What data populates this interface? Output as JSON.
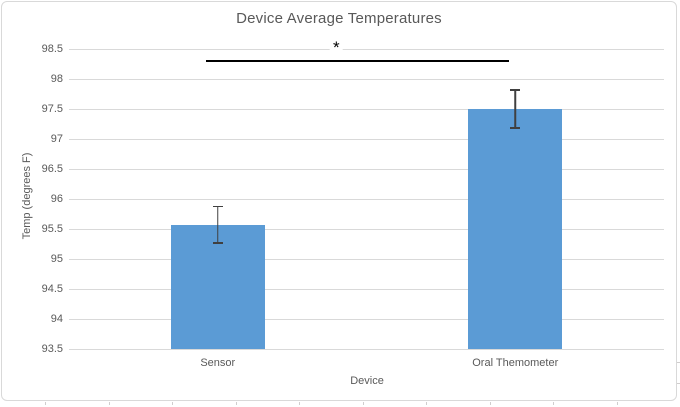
{
  "chart_data": {
    "type": "bar",
    "title": "Device Average Temperatures",
    "xlabel": "Device",
    "ylabel": "Temp (degrees F)",
    "categories": [
      "Sensor",
      "Oral Themometer"
    ],
    "values": [
      95.57,
      97.5
    ],
    "error_bars_plus_minus": [
      0.32,
      0.33
    ],
    "ylim": [
      93.5,
      98.5
    ],
    "yticks": [
      93.5,
      94,
      94.5,
      95,
      95.5,
      96,
      96.5,
      97,
      97.5,
      98,
      98.5
    ],
    "grid": true,
    "legend": "none",
    "significance": {
      "label": "*",
      "between": [
        "Sensor",
        "Oral Themometer"
      ],
      "y_value": 98.3
    },
    "colors": {
      "bar_fill": "#5B9BD5",
      "gridline": "#D9D9D9",
      "axis_line": "#D9D9D9",
      "text": "#595959",
      "error_bar": "#404040",
      "significance": "#000000",
      "chart_border": "#D9D9D9"
    }
  }
}
